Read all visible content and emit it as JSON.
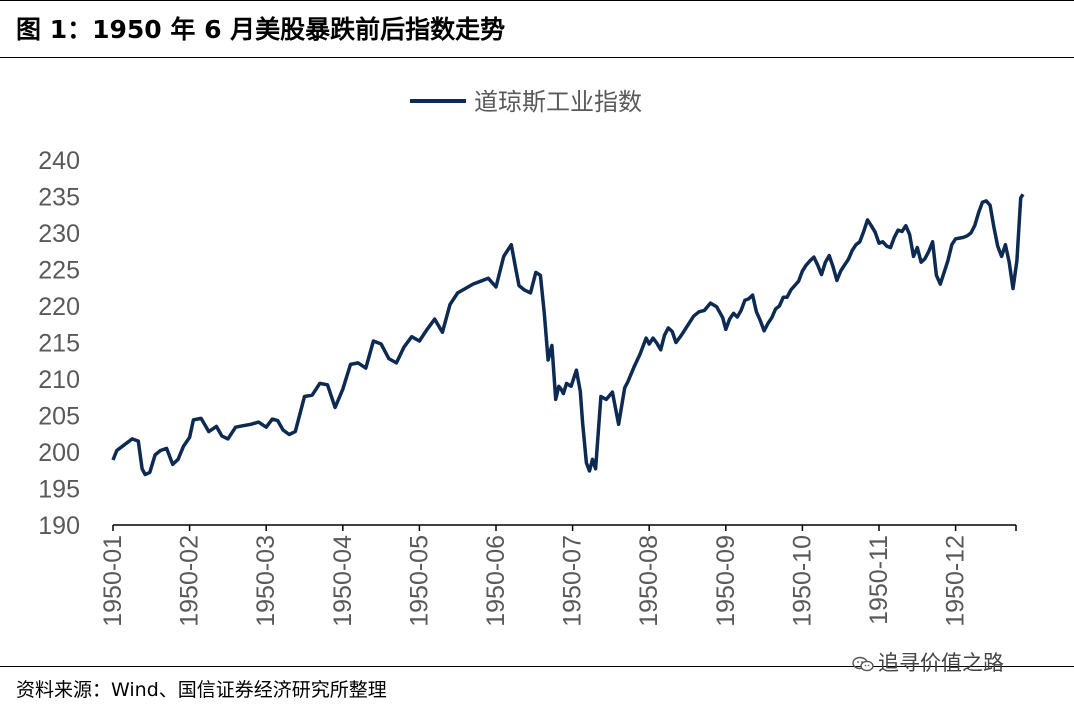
{
  "figure_title": "图 1：1950 年 6 月美股暴跌前后指数走势",
  "source_note": "资料来源：Wind、国信证券经济研究所整理",
  "watermark": "追寻价值之路",
  "watermark_icon": "wechat-icon",
  "colors": {
    "line": "#0d2a52",
    "axis": "#000000",
    "text": "#595959"
  },
  "chart_data": {
    "type": "line",
    "title": "",
    "xlabel": "",
    "ylabel": "",
    "ylim": [
      190,
      240
    ],
    "y_ticks": [
      "190",
      "195",
      "200",
      "205",
      "210",
      "215",
      "220",
      "225",
      "230",
      "235",
      "240"
    ],
    "x_ticks": [
      "1950-01",
      "1950-02",
      "1950-03",
      "1950-04",
      "1950-05",
      "1950-06",
      "1950-07",
      "1950-08",
      "1950-09",
      "1950-10",
      "1950-11",
      "1950-12"
    ],
    "legend_position": "top-center",
    "grid": false,
    "series": [
      {
        "name": "道琼斯工业指数",
        "x": [
          0.0,
          0.05,
          0.15,
          0.25,
          0.33,
          0.38,
          0.42,
          0.48,
          0.55,
          0.62,
          0.7,
          0.78,
          0.85,
          0.92,
          1.0,
          1.05,
          1.15,
          1.25,
          1.35,
          1.42,
          1.5,
          1.6,
          1.7,
          1.8,
          1.9,
          2.0,
          2.08,
          2.15,
          2.22,
          2.3,
          2.38,
          2.5,
          2.6,
          2.7,
          2.8,
          2.9,
          3.0,
          3.1,
          3.2,
          3.3,
          3.4,
          3.5,
          3.6,
          3.7,
          3.8,
          3.9,
          4.0,
          4.1,
          4.2,
          4.3,
          4.4,
          4.5,
          4.6,
          4.7,
          4.8,
          4.9,
          5.0,
          5.1,
          5.2,
          5.26,
          5.3,
          5.37,
          5.45,
          5.52,
          5.58,
          5.63,
          5.68,
          5.73,
          5.78,
          5.82,
          5.85,
          5.88,
          5.92,
          5.98,
          6.05,
          6.1,
          6.13,
          6.18,
          6.22,
          6.26,
          6.3,
          6.37,
          6.44,
          6.52,
          6.6,
          6.68,
          6.72,
          6.8,
          6.88,
          6.96,
          7.0,
          7.05,
          7.1,
          7.15,
          7.2,
          7.25,
          7.3,
          7.35,
          7.42,
          7.5,
          7.58,
          7.65,
          7.72,
          7.8,
          7.88,
          7.96,
          8.0,
          8.05,
          8.1,
          8.15,
          8.2,
          8.25,
          8.3,
          8.35,
          8.4,
          8.45,
          8.5,
          8.55,
          8.6,
          8.65,
          8.7,
          8.75,
          8.8,
          8.85,
          8.9,
          8.95,
          9.0,
          9.05,
          9.1,
          9.15,
          9.2,
          9.25,
          9.3,
          9.35,
          9.4,
          9.45,
          9.5,
          9.55,
          9.6,
          9.65,
          9.7,
          9.75,
          9.8,
          9.85,
          9.9,
          9.95,
          10.0,
          10.05,
          10.1,
          10.15,
          10.2,
          10.25,
          10.3,
          10.35,
          10.4,
          10.45,
          10.5,
          10.55,
          10.6,
          10.65,
          10.7,
          10.75,
          10.8,
          10.85,
          10.9,
          10.95,
          11.0,
          11.05,
          11.1,
          11.15,
          11.2,
          11.25,
          11.3,
          11.35,
          11.4,
          11.45,
          11.5,
          11.55,
          11.6,
          11.65,
          11.7,
          11.75,
          11.8,
          11.85,
          11.88
        ],
        "values": [
          198.9,
          200.2,
          201.0,
          201.8,
          201.5,
          197.7,
          196.9,
          197.2,
          199.6,
          200.2,
          200.5,
          198.3,
          199.0,
          200.8,
          202.0,
          204.4,
          204.6,
          202.8,
          203.5,
          202.2,
          201.8,
          203.4,
          203.6,
          203.8,
          204.1,
          203.4,
          204.5,
          204.3,
          203.0,
          202.4,
          202.8,
          207.6,
          207.8,
          209.4,
          209.2,
          206.1,
          208.6,
          212.0,
          212.2,
          211.5,
          215.2,
          214.8,
          212.8,
          212.2,
          214.4,
          215.8,
          215.2,
          216.8,
          218.2,
          216.4,
          220.2,
          221.8,
          222.4,
          223.0,
          223.4,
          223.8,
          222.6,
          226.8,
          228.4,
          225.0,
          222.8,
          222.2,
          221.8,
          224.6,
          224.2,
          219.0,
          212.6,
          214.6,
          207.2,
          209.0,
          208.6,
          208.0,
          209.4,
          209.0,
          211.2,
          208.3,
          204.0,
          198.5,
          197.4,
          199.0,
          197.7,
          207.6,
          207.2,
          208.2,
          203.8,
          208.8,
          209.6,
          211.6,
          213.4,
          215.6,
          214.8,
          215.6,
          214.9,
          214.0,
          216.0,
          217.0,
          216.5,
          215.0,
          216.0,
          217.3,
          218.6,
          219.2,
          219.4,
          220.4,
          219.9,
          218.4,
          216.8,
          218.2,
          219.0,
          218.5,
          219.4,
          220.8,
          221.0,
          221.5,
          219.2,
          218.0,
          216.6,
          217.6,
          218.4,
          219.6,
          220.0,
          221.2,
          221.2,
          222.2,
          222.8,
          223.4,
          224.8,
          225.6,
          226.2,
          226.7,
          225.6,
          224.3,
          226.0,
          226.9,
          225.4,
          223.5,
          224.8,
          225.6,
          226.4,
          227.6,
          228.4,
          228.8,
          230.2,
          231.8,
          231.0,
          230.1,
          228.6,
          228.8,
          228.2,
          228.0,
          229.4,
          230.4,
          230.2,
          231.0,
          229.8,
          226.8,
          228.0,
          226.0,
          226.5,
          227.5,
          228.8,
          224.2,
          223.0,
          224.6,
          226.2,
          228.4,
          229.2,
          229.3,
          229.4,
          229.6,
          230.0,
          231.0,
          232.8,
          234.2,
          234.4,
          233.8,
          230.8,
          228.2,
          226.8,
          228.4,
          226.0,
          222.4,
          226.2,
          234.8,
          235.3
        ]
      }
    ]
  }
}
